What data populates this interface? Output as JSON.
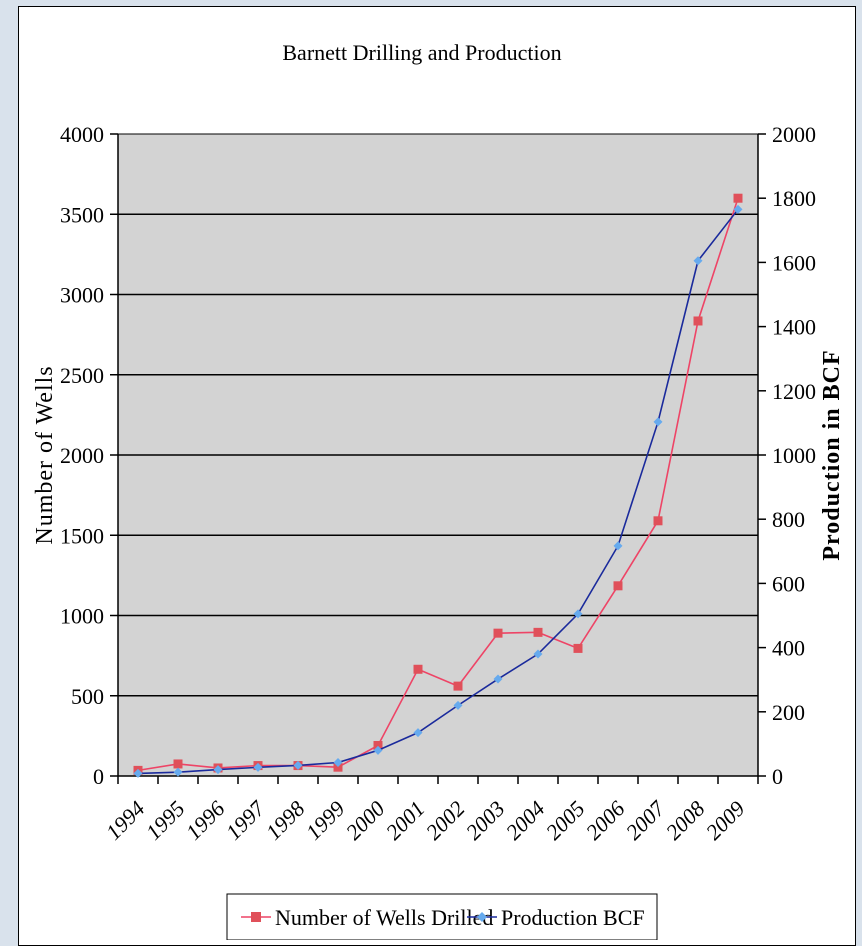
{
  "chart_data": {
    "type": "line",
    "title": "Barnett Drilling and Production",
    "categories": [
      "1994",
      "1995",
      "1996",
      "1997",
      "1998",
      "1999",
      "2000",
      "2001",
      "2002",
      "2003",
      "2004",
      "2005",
      "2006",
      "2007",
      "2008",
      "2009"
    ],
    "y_left": {
      "label": "Number of Wells",
      "ylim": [
        0,
        4000
      ],
      "ticks": [
        0,
        500,
        1000,
        1500,
        2000,
        2500,
        3000,
        3500,
        4000
      ]
    },
    "y_right": {
      "label": "Production in BCF",
      "ylim": [
        0,
        2000
      ],
      "ticks": [
        0,
        200,
        400,
        600,
        800,
        1000,
        1200,
        1400,
        1600,
        1800,
        2000
      ]
    },
    "grid": true,
    "legend_position": "bottom",
    "series": [
      {
        "name": "Number of Wells Drilled",
        "axis": "left",
        "color": "#ee4466",
        "marker_color": "#e0505a",
        "marker": "square",
        "values": [
          35,
          75,
          50,
          65,
          65,
          55,
          190,
          665,
          560,
          890,
          895,
          795,
          1185,
          1590,
          2835,
          3600
        ]
      },
      {
        "name": "Production BCF",
        "axis": "right",
        "color": "#1a2a9c",
        "marker_color": "#66aaee",
        "marker": "diamond",
        "values": [
          8,
          12,
          20,
          27,
          33,
          42,
          80,
          135,
          220,
          302,
          380,
          505,
          717,
          1103,
          1605,
          1765
        ]
      }
    ]
  }
}
